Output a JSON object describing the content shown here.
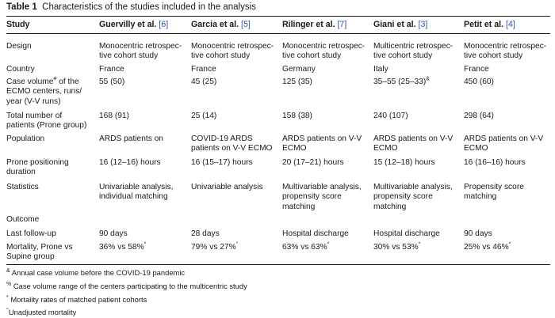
{
  "caption": {
    "label": "Table 1",
    "text": "Characteristics of the studies included in the analysis"
  },
  "columns": {
    "study": "Study",
    "c1": {
      "name": "Guervilly et al.",
      "ref": "[6]"
    },
    "c2": {
      "name": "Garcia et al.",
      "ref": "[5]"
    },
    "c3": {
      "name": "Rilinger et al.",
      "ref": "[7]"
    },
    "c4": {
      "name": "Giani et al.",
      "ref": "[3]"
    },
    "c5": {
      "name": "Petit et al.",
      "ref": "[4]"
    }
  },
  "rows": {
    "design": {
      "label": "Design",
      "c1": [
        "Monocentric retrospec-",
        "tive cohort study"
      ],
      "c2": [
        "Monocentric retrospec-",
        "tive cohort study"
      ],
      "c3": [
        "Monocentric retrospec-",
        "tive cohort study"
      ],
      "c4": [
        "Multicentric retrospec-",
        "tive cohort study"
      ],
      "c5": [
        "Monocentric retrospec-",
        "tive cohort study"
      ]
    },
    "country": {
      "label": "Country",
      "c1": "France",
      "c2": "France",
      "c3": "Germany",
      "c4": "Italy",
      "c5": "France"
    },
    "volume": {
      "label": [
        "Case volume",
        "#",
        " of the",
        "ECMO centers, runs/",
        "year (V-V runs)"
      ],
      "c1": "55 (50)",
      "c2": "45 (25)",
      "c3": "125 (35)",
      "c4": "35–55 (25–33)",
      "c4_mark": "&",
      "c5": "450 (60)"
    },
    "total": {
      "label": [
        "Total number of",
        "patients (Prone group)"
      ],
      "c1": "168 (91)",
      "c2": "25 (14)",
      "c3": "158 (38)",
      "c4": "240 (107)",
      "c5": "298 (64)"
    },
    "population": {
      "label": "Population",
      "c1": [
        "ARDS patients on"
      ],
      "c2": [
        "COVID-19 ARDS",
        "patients on V-V ECMO"
      ],
      "c3": [
        "ARDS patients on V-V",
        "ECMO"
      ],
      "c4": [
        "ARDS patients on V-V",
        "ECMO"
      ],
      "c5": [
        "ARDS patients on V-V",
        "ECMO"
      ]
    },
    "duration": {
      "label": [
        "Prone positioning",
        "duration"
      ],
      "c1": "16 (12–16) hours",
      "c2": "16 (15–17) hours",
      "c3": "20 (17–21) hours",
      "c4": "15 (12–18) hours",
      "c5": "16 (16–16) hours"
    },
    "statistics": {
      "label": "Statistics",
      "c1": [
        "Univariable analysis,",
        "individual matching"
      ],
      "c2": [
        "Univariable analysis"
      ],
      "c3": [
        "Multivariable analysis,",
        "propensity score",
        "matching"
      ],
      "c4": [
        "Multivariable analysis,",
        "propensity score",
        "matching"
      ],
      "c5": [
        "Propensity score",
        "matching"
      ]
    },
    "outcome": {
      "label": "Outcome"
    },
    "followup": {
      "label": "Last follow-up",
      "c1": "90 days",
      "c2": "28 days",
      "c3": "Hospital discharge",
      "c4": "Hospital discharge",
      "c5": "90 days"
    },
    "mortality": {
      "label": [
        "Mortality, Prone vs",
        "Supine group"
      ],
      "c1": "36% vs 58%",
      "c1_mark": "*",
      "c2": "79% vs 27%",
      "c2_mark": "°",
      "c3": "63% vs 63%",
      "c3_mark": "*",
      "c4": "30% vs 53%",
      "c4_mark": "*",
      "c5": "25% vs 46%",
      "c5_mark": "*"
    }
  },
  "footnotes": [
    {
      "mark": "&",
      "text": " Annual case volume before the COVID-19 pandemic"
    },
    {
      "mark": "%",
      "text": " Case volume range of the centers participating to the multicentric study"
    },
    {
      "mark": "*",
      "text": " Mortality rates of matched patient cohorts"
    },
    {
      "mark": "°",
      "text": "Unadjusted mortality"
    }
  ]
}
